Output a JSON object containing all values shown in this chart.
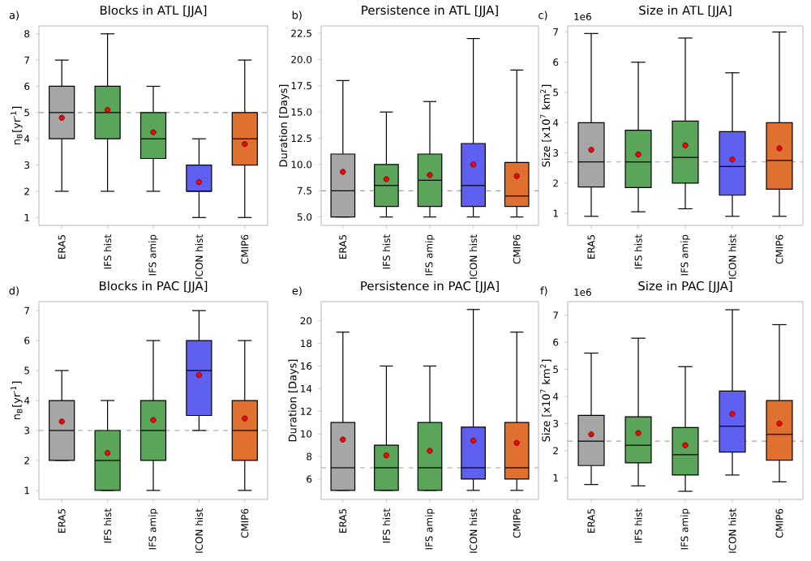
{
  "chart_data": [
    {
      "type": "box",
      "title": "Blocks in ATL [JJA]",
      "ylabel": "n$_{B}$[yr$^{-1}$]",
      "categories": [
        "ERA5",
        "IFS hist",
        "IFS amip",
        "ICON hist",
        "CMIP6"
      ],
      "colors": [
        "#a6a6a6",
        "#5aa55a",
        "#5aa55a",
        "#6060f0",
        "#e07030"
      ],
      "ylim": [
        0.7,
        8.3
      ],
      "yticks": [
        1,
        2,
        3,
        4,
        5,
        6,
        7,
        8
      ],
      "ref_lines": [
        {
          "axis": "y",
          "value": 5,
          "color": "#a0a0a0",
          "line_style": "dashed"
        }
      ],
      "annotations": [
        "a)"
      ],
      "boxes": [
        {
          "low": 2,
          "q1": 4,
          "median": 5,
          "q3": 6,
          "high": 7,
          "mean": 4.8
        },
        {
          "low": 2,
          "q1": 4,
          "median": 5,
          "q3": 6,
          "high": 8,
          "mean": 5.1
        },
        {
          "low": 2,
          "q1": 3.25,
          "median": 4,
          "q3": 5,
          "high": 6,
          "mean": 4.25
        },
        {
          "low": 1,
          "q1": 2,
          "median": 2,
          "q3": 3,
          "high": 4,
          "mean": 2.35
        },
        {
          "low": 1,
          "q1": 3,
          "median": 4,
          "q3": 5,
          "high": 7,
          "mean": 3.8
        }
      ]
    },
    {
      "type": "box",
      "title": "Persistence in ATL [JJA]",
      "ylabel": "Duration [Days]",
      "categories": [
        "ERA5",
        "IFS hist",
        "IFS amip",
        "ICON hist",
        "CMIP6"
      ],
      "colors": [
        "#a6a6a6",
        "#5aa55a",
        "#5aa55a",
        "#6060f0",
        "#e07030"
      ],
      "ylim": [
        4.2,
        23.2
      ],
      "yticks": [
        {
          "value": 5,
          "label": "5.0"
        },
        {
          "value": 7.5,
          "label": "7.5"
        },
        {
          "value": 10,
          "label": "10.0"
        },
        {
          "value": 12.5,
          "label": "12.5"
        },
        {
          "value": 15,
          "label": "15.0"
        },
        {
          "value": 17.5,
          "label": "17.5"
        },
        {
          "value": 20,
          "label": "20.0"
        },
        {
          "value": 22.5,
          "label": "22.5"
        }
      ],
      "ref_lines": [
        {
          "axis": "y",
          "value": 7.5,
          "color": "#a0a0a0",
          "line_style": "dashed"
        }
      ],
      "annotations": [
        "b)"
      ],
      "boxes": [
        {
          "low": 5,
          "q1": 5,
          "median": 7.5,
          "q3": 11,
          "high": 18,
          "mean": 9.3
        },
        {
          "low": 5,
          "q1": 6,
          "median": 8,
          "q3": 10,
          "high": 15,
          "mean": 8.6
        },
        {
          "low": 5,
          "q1": 6,
          "median": 8.5,
          "q3": 11,
          "high": 16,
          "mean": 9.0
        },
        {
          "low": 5,
          "q1": 6,
          "median": 8,
          "q3": 12,
          "high": 22,
          "mean": 10.0
        },
        {
          "low": 5,
          "q1": 6,
          "median": 7,
          "q3": 10.2,
          "high": 19,
          "mean": 8.9
        }
      ]
    },
    {
      "type": "box",
      "title": "Size in ATL [JJA]",
      "ylabel": "Size [x10$^{7}$ km$^{2}$]",
      "categories": [
        "ERA5",
        "IFS hist",
        "IFS amip",
        "ICON hist",
        "CMIP6"
      ],
      "colors": [
        "#a6a6a6",
        "#5aa55a",
        "#5aa55a",
        "#6060f0",
        "#e07030"
      ],
      "ylim": [
        0.6,
        7.2
      ],
      "yticks": [
        1,
        2,
        3,
        4,
        5,
        6,
        7
      ],
      "ref_lines": [
        {
          "axis": "y",
          "value": 2.7,
          "color": "#a0a0a0",
          "line_style": "dashed"
        }
      ],
      "annotations": [
        "c)",
        "1e6"
      ],
      "boxes": [
        {
          "low": 0.9,
          "q1": 1.87,
          "median": 2.7,
          "q3": 4.0,
          "high": 6.95,
          "mean": 3.1
        },
        {
          "low": 1.05,
          "q1": 1.85,
          "median": 2.7,
          "q3": 3.75,
          "high": 6.0,
          "mean": 2.95
        },
        {
          "low": 1.15,
          "q1": 2.0,
          "median": 2.85,
          "q3": 4.05,
          "high": 6.8,
          "mean": 3.25
        },
        {
          "low": 0.9,
          "q1": 1.6,
          "median": 2.55,
          "q3": 3.7,
          "high": 5.65,
          "mean": 2.78
        },
        {
          "low": 0.9,
          "q1": 1.8,
          "median": 2.75,
          "q3": 4.0,
          "high": 7.0,
          "mean": 3.15
        }
      ]
    },
    {
      "type": "box",
      "title": "Blocks in PAC [JJA]",
      "ylabel": "n$_{B}$[yr$^{-1}$]",
      "categories": [
        "ERA5",
        "IFS hist",
        "IFS amip",
        "ICON hist",
        "CMIP6"
      ],
      "colors": [
        "#a6a6a6",
        "#5aa55a",
        "#5aa55a",
        "#6060f0",
        "#e07030"
      ],
      "ylim": [
        0.7,
        7.3
      ],
      "yticks": [
        1,
        2,
        3,
        4,
        5,
        6,
        7
      ],
      "ref_lines": [
        {
          "axis": "y",
          "value": 3,
          "color": "#a0a0a0",
          "line_style": "dashed"
        }
      ],
      "annotations": [
        "d)"
      ],
      "boxes": [
        {
          "low": 2,
          "q1": 2,
          "median": 3,
          "q3": 4,
          "high": 5,
          "mean": 3.3
        },
        {
          "low": 1,
          "q1": 1,
          "median": 2,
          "q3": 3,
          "high": 4,
          "mean": 2.25
        },
        {
          "low": 1,
          "q1": 2,
          "median": 3,
          "q3": 4,
          "high": 6,
          "mean": 3.35
        },
        {
          "low": 3,
          "q1": 3.5,
          "median": 5,
          "q3": 6,
          "high": 7,
          "mean": 4.85
        },
        {
          "low": 1,
          "q1": 2,
          "median": 3,
          "q3": 4,
          "high": 6,
          "mean": 3.4
        }
      ]
    },
    {
      "type": "box",
      "title": "Persistence in PAC [JJA]",
      "ylabel": "Duration [Days]",
      "categories": [
        "ERA5",
        "IFS hist",
        "IFS amip",
        "ICON hist",
        "CMIP6"
      ],
      "colors": [
        "#a6a6a6",
        "#5aa55a",
        "#5aa55a",
        "#6060f0",
        "#e07030"
      ],
      "ylim": [
        4.2,
        21.7
      ],
      "yticks": [
        6,
        8,
        10,
        12,
        14,
        16,
        18,
        20
      ],
      "ref_lines": [
        {
          "axis": "y",
          "value": 7,
          "color": "#a0a0a0",
          "line_style": "dashed"
        }
      ],
      "annotations": [
        "e)"
      ],
      "boxes": [
        {
          "low": 5,
          "q1": 5,
          "median": 7,
          "q3": 11,
          "high": 19,
          "mean": 9.5
        },
        {
          "low": 5,
          "q1": 5,
          "median": 7,
          "q3": 9,
          "high": 16,
          "mean": 8.1
        },
        {
          "low": 5,
          "q1": 5,
          "median": 7,
          "q3": 11,
          "high": 16,
          "mean": 8.5
        },
        {
          "low": 5,
          "q1": 6,
          "median": 7,
          "q3": 10.6,
          "high": 21,
          "mean": 9.4
        },
        {
          "low": 5,
          "q1": 6,
          "median": 7,
          "q3": 11,
          "high": 19,
          "mean": 9.2
        }
      ]
    },
    {
      "type": "box",
      "title": "Size in PAC [JJA]",
      "ylabel": "Size [x10$^{7}$ km$^{2}$]",
      "categories": [
        "ERA5",
        "IFS hist",
        "IFS amip",
        "ICON hist",
        "CMIP6"
      ],
      "colors": [
        "#a6a6a6",
        "#5aa55a",
        "#5aa55a",
        "#6060f0",
        "#e07030"
      ],
      "ylim": [
        0.2,
        7.5
      ],
      "yticks": [
        1,
        2,
        3,
        4,
        5,
        6,
        7
      ],
      "ref_lines": [
        {
          "axis": "y",
          "value": 2.35,
          "color": "#a0a0a0",
          "line_style": "dashed"
        }
      ],
      "annotations": [
        "f)",
        "1e6"
      ],
      "boxes": [
        {
          "low": 0.75,
          "q1": 1.45,
          "median": 2.35,
          "q3": 3.3,
          "high": 5.6,
          "mean": 2.6
        },
        {
          "low": 0.7,
          "q1": 1.55,
          "median": 2.2,
          "q3": 3.25,
          "high": 6.15,
          "mean": 2.65
        },
        {
          "low": 0.5,
          "q1": 1.1,
          "median": 1.85,
          "q3": 2.85,
          "high": 5.1,
          "mean": 2.2
        },
        {
          "low": 1.1,
          "q1": 1.95,
          "median": 2.9,
          "q3": 4.2,
          "high": 7.2,
          "mean": 3.35
        },
        {
          "low": 0.85,
          "q1": 1.65,
          "median": 2.6,
          "q3": 3.85,
          "high": 6.65,
          "mean": 3.0
        }
      ]
    }
  ]
}
